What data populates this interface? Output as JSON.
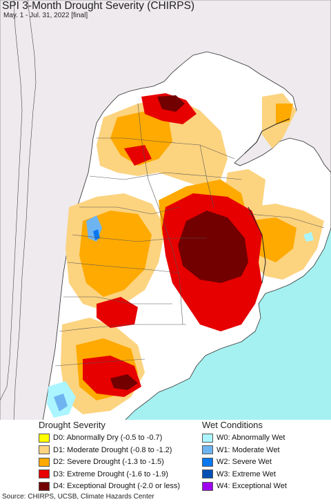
{
  "map": {
    "title": "SPI 3-Month Drought Severity (CHIRPS)",
    "subtitle": "May. 1 - Jul. 31, 2022 [final]"
  },
  "legend": {
    "drought_heading": "Drought Severity",
    "wet_heading": "Wet Conditions",
    "drought_items": [
      {
        "label": "D0: Abnormally Dry (-0.5 to -0.7)",
        "color": "#ffff00"
      },
      {
        "label": "D1: Moderate Drought (-0.8 to -1.2)",
        "color": "#fcd37f"
      },
      {
        "label": "D2: Severe Drought (-1.3 to -1.5)",
        "color": "#ffaa00"
      },
      {
        "label": "D3: Extreme Drought (-1.6 to -1.9)",
        "color": "#e60000"
      },
      {
        "label": "D4: Exceptional Drought (-2.0 or less)",
        "color": "#730000"
      }
    ],
    "wet_items": [
      {
        "label": "W0: Abnormally Wet",
        "color": "#aaf5ff"
      },
      {
        "label": "W1: Moderate Wet",
        "color": "#6eb4f0"
      },
      {
        "label": "W2: Severe Wet",
        "color": "#0a78f0"
      },
      {
        "label": "W3: Extreme Wet",
        "color": "#0050b4"
      },
      {
        "label": "W4: Exceptional Wet",
        "color": "#a000f0"
      }
    ]
  },
  "colors": {
    "ocean": "#a5f0f0",
    "neighbor_land": "#eeeaee",
    "no_drought_land": "#ffffff",
    "border": "#333333"
  },
  "footer": {
    "source": "Source: CHIRPS, UCSB, Climate Hazards Center"
  }
}
